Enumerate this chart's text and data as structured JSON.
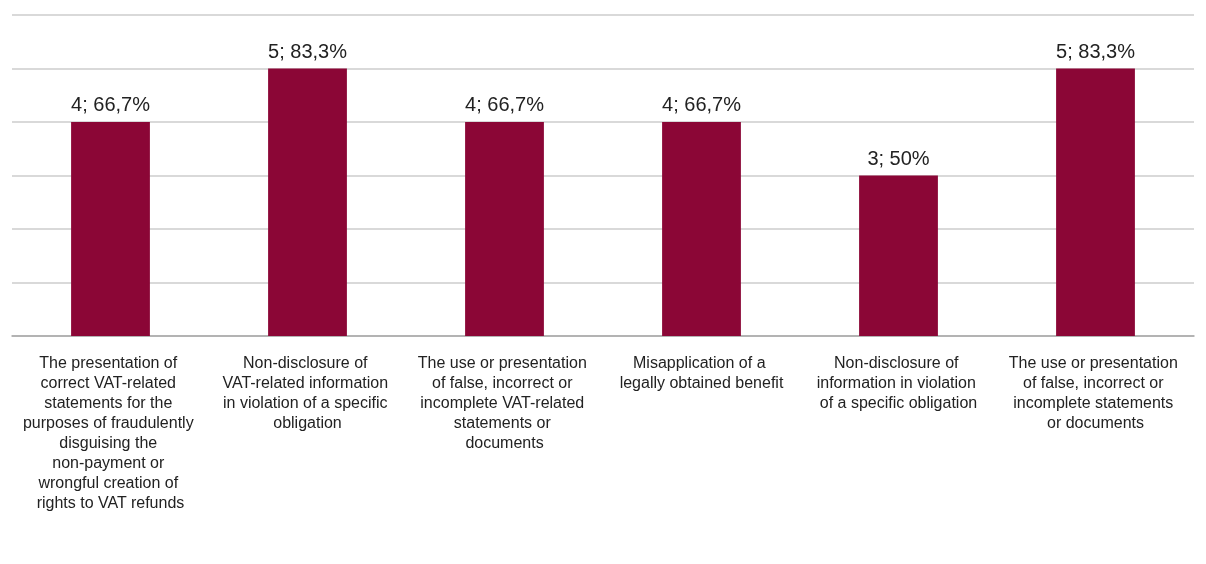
{
  "chart_data": {
    "type": "bar",
    "categories": [
      "The presentation of correct VAT-related statements for the purposes of fraudulently disguising the non-payment or wrongful creation of rights to VAT refunds",
      "Non-disclosure of VAT-related information in violation of a specific obligation",
      "The use or presentation of false, incorrect or incomplete VAT-related statements or documents",
      "Misapplication of a legally obtained benefit",
      "Non-disclosure of information in violation of a specific obligation",
      "The use or presentation of false, incorrect or incomplete statements or documents"
    ],
    "values": [
      4,
      5,
      4,
      4,
      3,
      5
    ],
    "value_labels": [
      "4; 66,7%",
      "5; 83,3%",
      "4; 66,7%",
      "4; 66,7%",
      "3; 50%",
      "5; 83,3%"
    ],
    "color": "#8b0636",
    "ylim": [
      0,
      6
    ],
    "yticks": [
      {
        "value": 0,
        "label": null
      },
      {
        "value": 1,
        "label": null
      },
      {
        "value": 2,
        "label": null
      },
      {
        "value": 3,
        "label": null
      },
      {
        "value": 4,
        "label": null
      },
      {
        "value": 5,
        "label": null
      },
      {
        "value": 6,
        "label": null
      }
    ],
    "grid": "y",
    "tick_labels": "x"
  }
}
